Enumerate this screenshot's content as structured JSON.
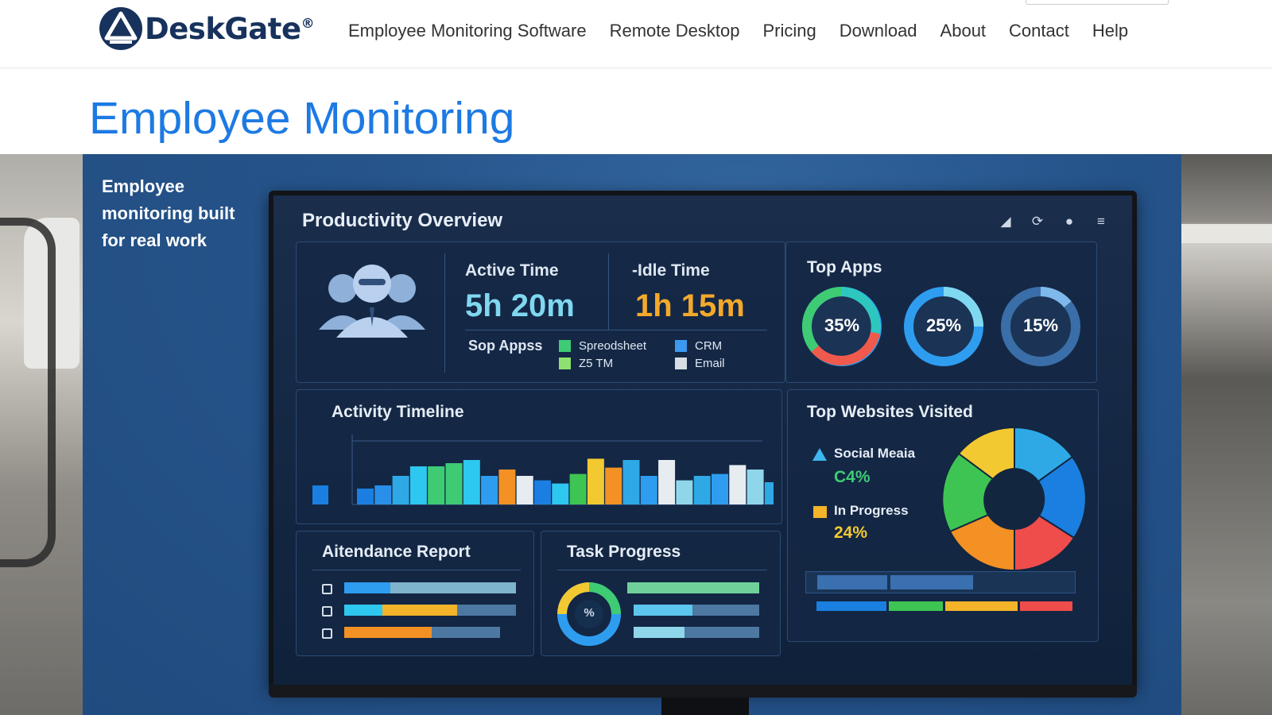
{
  "header": {
    "logo_text": "DeskGate",
    "logo_reg": "®",
    "nav": [
      "Employee Monitoring Software",
      "Remote Desktop",
      "Pricing",
      "Download",
      "About",
      "Contact",
      "Help"
    ]
  },
  "page": {
    "title": "Employee Monitoring",
    "tagline": "Employee monitoring built for real work"
  },
  "dashboard": {
    "title": "Productivity Overview",
    "active_label": "Active Time",
    "active_value": "5h 20m",
    "idle_label": "-Idle Time",
    "idle_value": "1h 15m",
    "apps_label": "Sop Appss",
    "legend": [
      "Spreodsheet",
      "Z5 TM",
      "CRM",
      "Email"
    ],
    "top_apps_title": "Top Apps",
    "top_apps": [
      {
        "value": "35%",
        "fraction": 0.35
      },
      {
        "value": "25%",
        "fraction": 0.25
      },
      {
        "value": "15%",
        "fraction": 0.15
      }
    ],
    "timeline_title": "Activity Timeline",
    "timeline_values": [
      0.25,
      0.3,
      0.45,
      0.6,
      0.6,
      0.65,
      0.7,
      0.45,
      0.55,
      0.45,
      0.38,
      0.33,
      0.48,
      0.72,
      0.58,
      0.7,
      0.45,
      0.7,
      0.38,
      0.45,
      0.48,
      0.62,
      0.55,
      0.35
    ],
    "websites_title": "Top Websites Visited",
    "web_1_label": "Social Meaia",
    "web_1_value": "C4%",
    "web_2_label": "In Progress",
    "web_2_value": "24%",
    "attendance_title": "Aitendance Report",
    "task_title": "Task Progress",
    "task_ring_label": "%"
  },
  "colors": {
    "brand": "#17325c",
    "title_blue": "#1d7ae3",
    "active_cyan": "#7fd8f0",
    "idle_orange": "#f4a92a",
    "green": "#3ecb74",
    "yellow": "#f3c932"
  }
}
